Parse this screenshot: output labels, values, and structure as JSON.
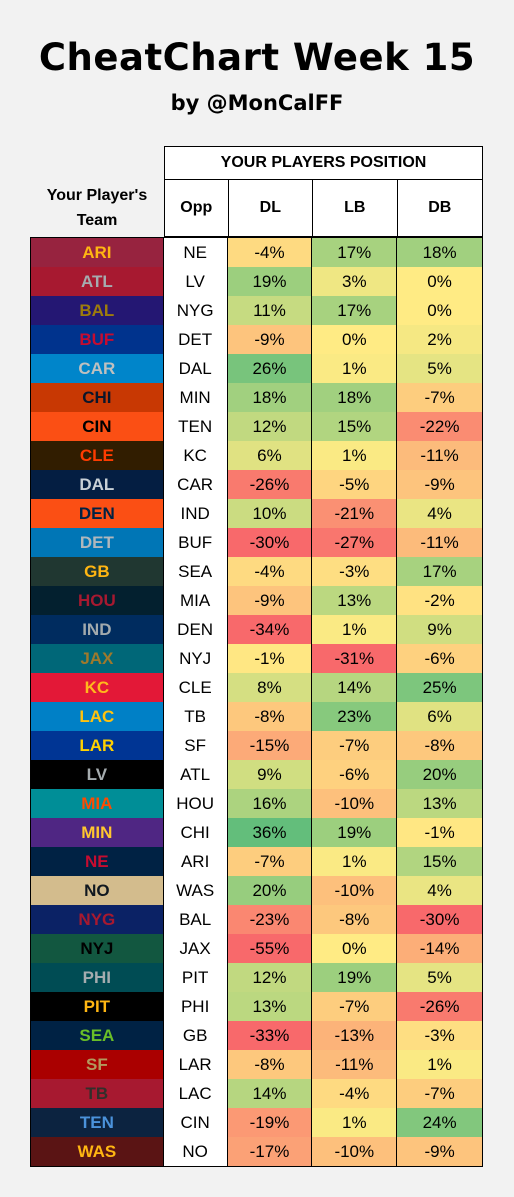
{
  "title": "CheatChart Week 15",
  "subtitle": "by @MonCalFF",
  "header": {
    "team_label": "Your Player's Team",
    "group_label": "YOUR PLAYERS POSITION",
    "opp": "Opp",
    "dl": "DL",
    "lb": "LB",
    "db": "DB"
  },
  "rows": [
    {
      "team": "ARI",
      "bg": "#97233f",
      "fg": "#ffb612",
      "opp": "NE",
      "dl": "-4%",
      "lb": "17%",
      "db": "18%"
    },
    {
      "team": "ATL",
      "bg": "#a71930",
      "fg": "#a5acaf",
      "opp": "LV",
      "dl": "19%",
      "lb": "3%",
      "db": "0%"
    },
    {
      "team": "BAL",
      "bg": "#241773",
      "fg": "#9e7c0c",
      "opp": "NYG",
      "dl": "11%",
      "lb": "17%",
      "db": "0%"
    },
    {
      "team": "BUF",
      "bg": "#00338d",
      "fg": "#c60c30",
      "opp": "DET",
      "dl": "-9%",
      "lb": "0%",
      "db": "2%"
    },
    {
      "team": "CAR",
      "bg": "#0085ca",
      "fg": "#bfc0bf",
      "opp": "DAL",
      "dl": "26%",
      "lb": "1%",
      "db": "5%"
    },
    {
      "team": "CHI",
      "bg": "#c83803",
      "fg": "#0b162a",
      "opp": "MIN",
      "dl": "18%",
      "lb": "18%",
      "db": "-7%"
    },
    {
      "team": "CIN",
      "bg": "#fb4f14",
      "fg": "#000000",
      "opp": "TEN",
      "dl": "12%",
      "lb": "15%",
      "db": "-22%"
    },
    {
      "team": "CLE",
      "bg": "#311d00",
      "fg": "#ff3c00",
      "opp": "KC",
      "dl": "6%",
      "lb": "1%",
      "db": "-11%"
    },
    {
      "team": "DAL",
      "bg": "#041e42",
      "fg": "#c8d0d6",
      "opp": "CAR",
      "dl": "-26%",
      "lb": "-5%",
      "db": "-9%"
    },
    {
      "team": "DEN",
      "bg": "#fb4f14",
      "fg": "#002244",
      "opp": "IND",
      "dl": "10%",
      "lb": "-21%",
      "db": "4%"
    },
    {
      "team": "DET",
      "bg": "#0076b6",
      "fg": "#b0b7bc",
      "opp": "BUF",
      "dl": "-30%",
      "lb": "-27%",
      "db": "-11%"
    },
    {
      "team": "GB",
      "bg": "#203731",
      "fg": "#ffb612",
      "opp": "SEA",
      "dl": "-4%",
      "lb": "-3%",
      "db": "17%"
    },
    {
      "team": "HOU",
      "bg": "#03202f",
      "fg": "#a71930",
      "opp": "MIA",
      "dl": "-9%",
      "lb": "13%",
      "db": "-2%"
    },
    {
      "team": "IND",
      "bg": "#002c5f",
      "fg": "#a2aaad",
      "opp": "DEN",
      "dl": "-34%",
      "lb": "1%",
      "db": "9%"
    },
    {
      "team": "JAX",
      "bg": "#006778",
      "fg": "#9f792c",
      "opp": "NYJ",
      "dl": "-1%",
      "lb": "-31%",
      "db": "-6%"
    },
    {
      "team": "KC",
      "bg": "#e31837",
      "fg": "#ffb81c",
      "opp": "CLE",
      "dl": "8%",
      "lb": "14%",
      "db": "25%"
    },
    {
      "team": "LAC",
      "bg": "#0080c6",
      "fg": "#ffc20e",
      "opp": "TB",
      "dl": "-8%",
      "lb": "23%",
      "db": "6%"
    },
    {
      "team": "LAR",
      "bg": "#003594",
      "fg": "#ffd100",
      "opp": "SF",
      "dl": "-15%",
      "lb": "-7%",
      "db": "-8%"
    },
    {
      "team": "LV",
      "bg": "#000000",
      "fg": "#a5acaf",
      "opp": "ATL",
      "dl": "9%",
      "lb": "-6%",
      "db": "20%"
    },
    {
      "team": "MIA",
      "bg": "#008e97",
      "fg": "#fc4c02",
      "opp": "HOU",
      "dl": "16%",
      "lb": "-10%",
      "db": "13%"
    },
    {
      "team": "MIN",
      "bg": "#4f2683",
      "fg": "#ffc62f",
      "opp": "CHI",
      "dl": "36%",
      "lb": "19%",
      "db": "-1%"
    },
    {
      "team": "NE",
      "bg": "#002244",
      "fg": "#c60c30",
      "opp": "ARI",
      "dl": "-7%",
      "lb": "1%",
      "db": "15%"
    },
    {
      "team": "NO",
      "bg": "#d3bc8d",
      "fg": "#101820",
      "opp": "WAS",
      "dl": "20%",
      "lb": "-10%",
      "db": "4%"
    },
    {
      "team": "NYG",
      "bg": "#0b2265",
      "fg": "#a71930",
      "opp": "BAL",
      "dl": "-23%",
      "lb": "-8%",
      "db": "-30%"
    },
    {
      "team": "NYJ",
      "bg": "#125740",
      "fg": "#000000",
      "opp": "JAX",
      "dl": "-55%",
      "lb": "0%",
      "db": "-14%"
    },
    {
      "team": "PHI",
      "bg": "#004c54",
      "fg": "#a5acaf",
      "opp": "PIT",
      "dl": "12%",
      "lb": "19%",
      "db": "5%"
    },
    {
      "team": "PIT",
      "bg": "#000000",
      "fg": "#ffb612",
      "opp": "PHI",
      "dl": "13%",
      "lb": "-7%",
      "db": "-26%"
    },
    {
      "team": "SEA",
      "bg": "#002244",
      "fg": "#69be28",
      "opp": "GB",
      "dl": "-33%",
      "lb": "-13%",
      "db": "-3%"
    },
    {
      "team": "SF",
      "bg": "#aa0000",
      "fg": "#b3995d",
      "opp": "LAR",
      "dl": "-8%",
      "lb": "-11%",
      "db": "1%"
    },
    {
      "team": "TB",
      "bg": "#a71930",
      "fg": "#322f2b",
      "opp": "LAC",
      "dl": "14%",
      "lb": "-4%",
      "db": "-7%"
    },
    {
      "team": "TEN",
      "bg": "#0c2340",
      "fg": "#4b92db",
      "opp": "CIN",
      "dl": "-19%",
      "lb": "1%",
      "db": "24%"
    },
    {
      "team": "WAS",
      "bg": "#5a1414",
      "fg": "#ffb612",
      "opp": "NO",
      "dl": "-17%",
      "lb": "-10%",
      "db": "-9%"
    }
  ],
  "scale_colors": {
    "low": "#f8696b",
    "mid": "#ffeb84",
    "high": "#63be7b"
  }
}
